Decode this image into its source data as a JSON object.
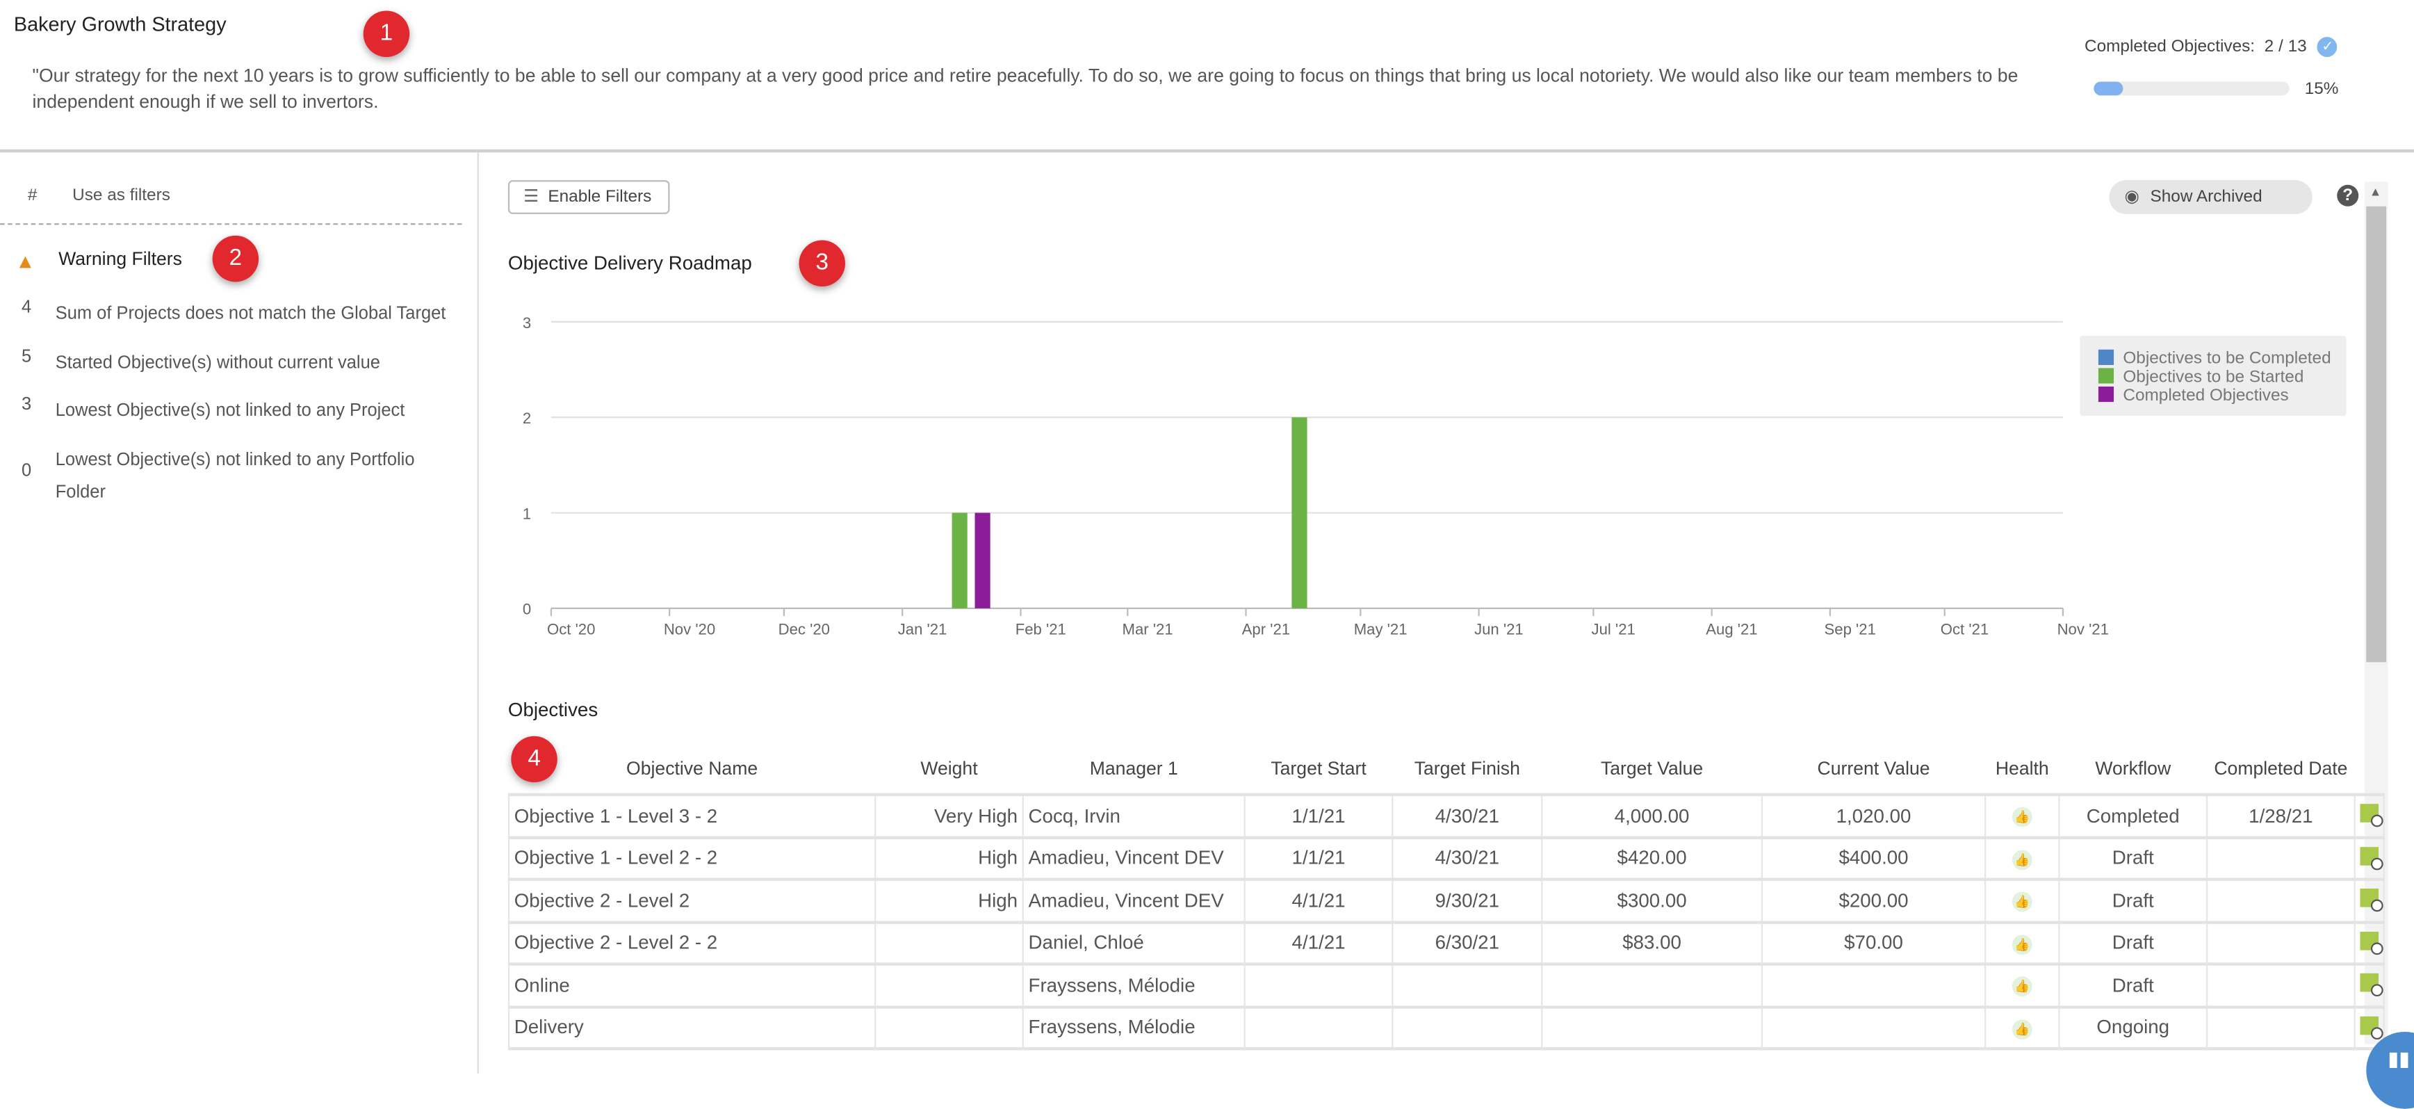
{
  "header": {
    "title": "Bakery Growth Strategy",
    "description": "\"Our strategy for the next 10 years is to grow sufficiently to be able to sell our company at a very good price and retire peacefully. To do so, we are going to focus on things that bring us local notoriety. We would also like our team members to be independent enough if we sell to invertors.",
    "completed_label": "Completed Objectives:",
    "completed": "2",
    "separator": "/",
    "total": "13",
    "progress_percent": 15,
    "progress_label": "15%"
  },
  "badges": [
    "1",
    "2",
    "3",
    "4"
  ],
  "sidebar": {
    "col_hash": "#",
    "col_label": "Use as filters",
    "warning_title": "Warning Filters",
    "items": [
      {
        "count": "4",
        "label": "Sum of Projects does not match the Global Target"
      },
      {
        "count": "5",
        "label": "Started Objective(s) without current value"
      },
      {
        "count": "3",
        "label": "Lowest Objective(s) not linked to any Project"
      },
      {
        "count": "0",
        "label": "Lowest Objective(s) not linked to any Portfolio Folder"
      }
    ]
  },
  "toolbar": {
    "enable_filters": "Enable Filters",
    "show_archived": "Show Archived",
    "help": "?"
  },
  "chart_data": {
    "type": "bar",
    "title": "Objective Delivery Roadmap",
    "x_ticks": [
      "Oct '20",
      "Nov '20",
      "Dec '20",
      "Jan '21",
      "Feb '21",
      "Mar '21",
      "Apr '21",
      "May '21",
      "Jun '21",
      "Jul '21",
      "Aug '21",
      "Sep '21",
      "Oct '21",
      "Nov '21"
    ],
    "y_ticks": [
      "0",
      "1",
      "2",
      "3"
    ],
    "ylim": [
      0,
      3
    ],
    "grid": true,
    "legend_position": "top-right",
    "series": [
      {
        "name": "Objectives to be Completed",
        "color": "#4e86c6",
        "points": []
      },
      {
        "name": "Objectives to be Started",
        "color": "#6bb344",
        "points": [
          {
            "x": "2021-01-16",
            "y": 1
          },
          {
            "x": "2021-04-15",
            "y": 2
          }
        ]
      },
      {
        "name": "Completed Objectives",
        "color": "#8b1c9a",
        "points": [
          {
            "x": "2021-01-22",
            "y": 1
          }
        ]
      }
    ]
  },
  "objectives": {
    "title": "Objectives",
    "columns": [
      "Objective Name",
      "Weight",
      "Manager 1",
      "Target Start",
      "Target Finish",
      "Target Value",
      "Current Value",
      "Health",
      "Workflow",
      "Completed Date"
    ],
    "rows": [
      [
        "Objective 1 - Level 3 - 2",
        "Very High",
        "Cocq, Irvin",
        "1/1/21",
        "4/30/21",
        "4,000.00",
        "1,020.00",
        "good",
        "Completed",
        "1/28/21"
      ],
      [
        "Objective 1 - Level 2 - 2",
        "High",
        "Amadieu, Vincent DEV",
        "1/1/21",
        "4/30/21",
        "$420.00",
        "$400.00",
        "good",
        "Draft",
        ""
      ],
      [
        "Objective 2 - Level 2",
        "High",
        "Amadieu, Vincent DEV",
        "4/1/21",
        "9/30/21",
        "$300.00",
        "$200.00",
        "good",
        "Draft",
        ""
      ],
      [
        "Objective 2 - Level 2 - 2",
        "",
        "Daniel, Chloé",
        "4/1/21",
        "6/30/21",
        "$83.00",
        "$70.00",
        "good",
        "Draft",
        ""
      ],
      [
        "Online",
        "",
        "Frayssens, Mélodie",
        "",
        "",
        "",
        "",
        "good",
        "Draft",
        ""
      ],
      [
        "Delivery",
        "",
        "Frayssens, Mélodie",
        "",
        "",
        "",
        "",
        "good",
        "Ongoing",
        ""
      ]
    ]
  }
}
